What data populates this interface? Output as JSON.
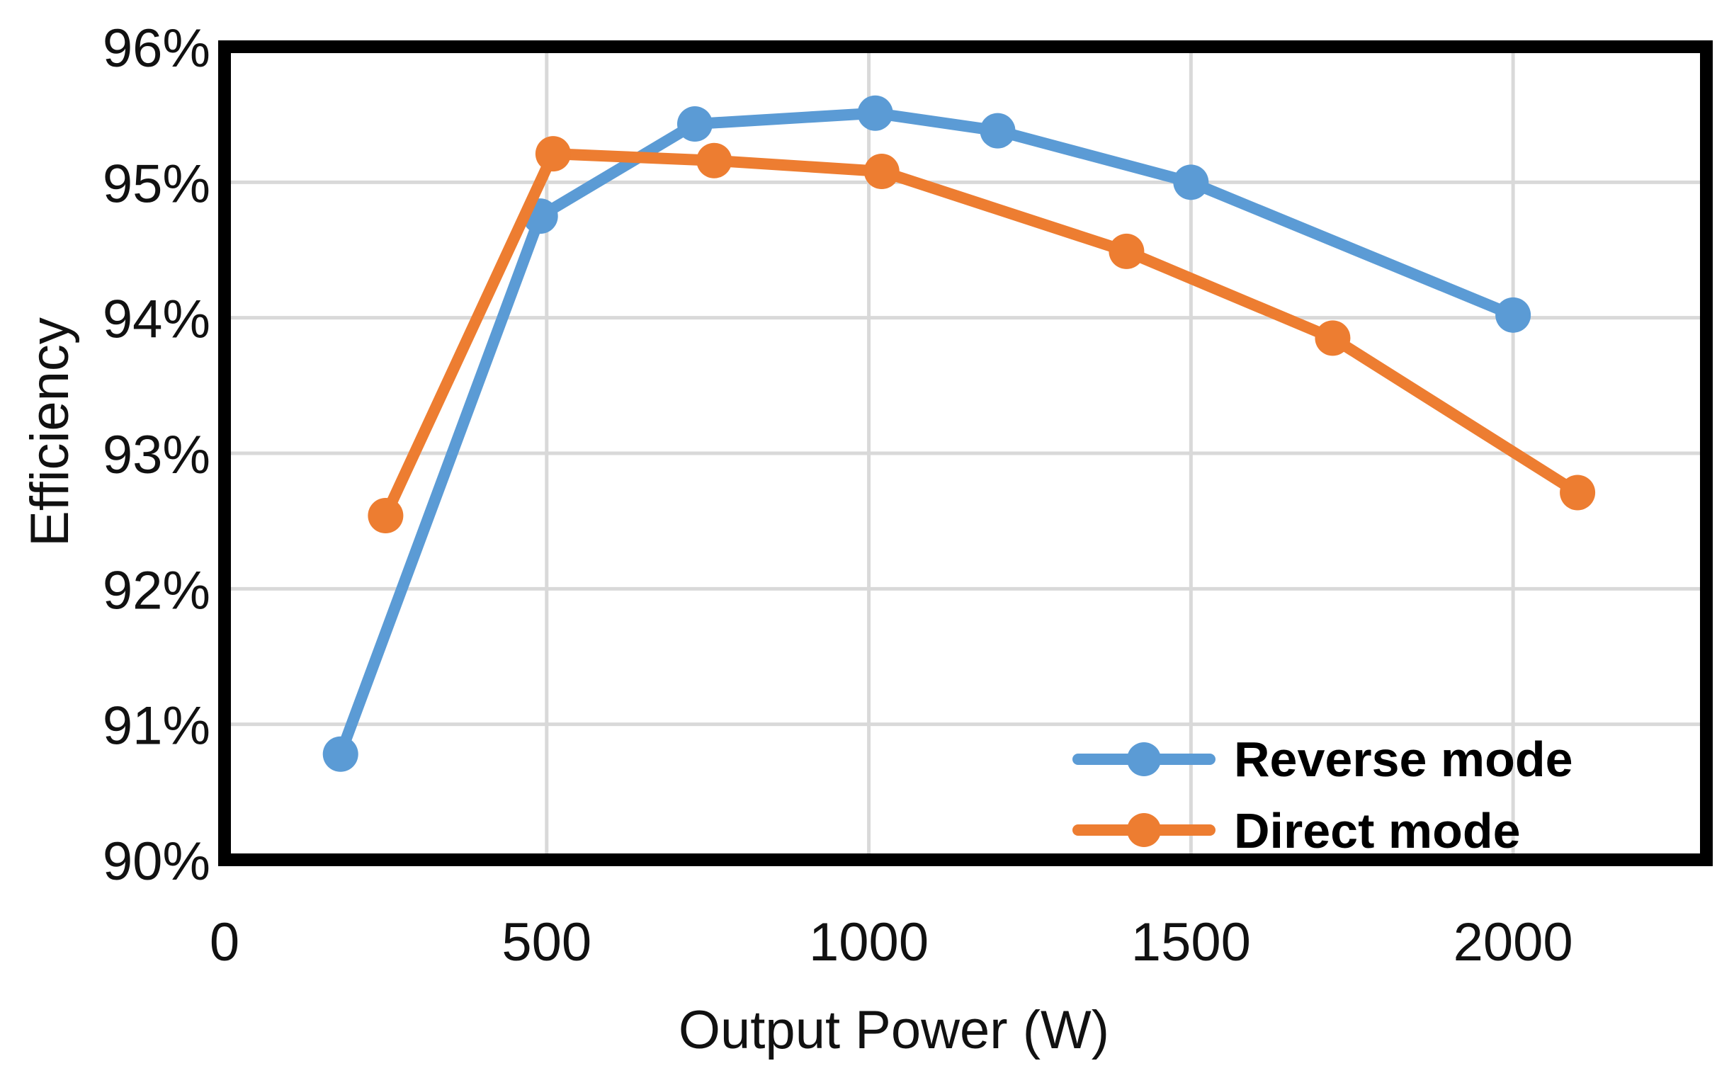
{
  "chart_data": {
    "type": "line",
    "title": "",
    "xlabel": "Output Power (W)",
    "ylabel": "Efficiency",
    "xlim": [
      0,
      2300
    ],
    "ylim": [
      90,
      96
    ],
    "x_ticks": [
      0,
      500,
      1000,
      1500,
      2000
    ],
    "x_tick_labels": [
      "0",
      "500",
      "1000",
      "1500",
      "2000"
    ],
    "y_ticks": [
      90,
      91,
      92,
      93,
      94,
      95,
      96
    ],
    "y_tick_labels": [
      "90%",
      "91%",
      "92%",
      "93%",
      "94%",
      "95%",
      "96%"
    ],
    "grid": true,
    "legend_position": "bottom-right",
    "series": [
      {
        "name": "Reverse mode",
        "color": "#5B9BD5",
        "points": [
          {
            "x": 180,
            "y": 90.78
          },
          {
            "x": 490,
            "y": 94.75
          },
          {
            "x": 730,
            "y": 95.43
          },
          {
            "x": 1010,
            "y": 95.51
          },
          {
            "x": 1200,
            "y": 95.38
          },
          {
            "x": 1500,
            "y": 95.0
          },
          {
            "x": 2000,
            "y": 94.02
          }
        ]
      },
      {
        "name": "Direct mode",
        "color": "#ED7D31",
        "points": [
          {
            "x": 250,
            "y": 92.54
          },
          {
            "x": 510,
            "y": 95.21
          },
          {
            "x": 760,
            "y": 95.16
          },
          {
            "x": 1020,
            "y": 95.08
          },
          {
            "x": 1400,
            "y": 94.49
          },
          {
            "x": 1720,
            "y": 93.85
          },
          {
            "x": 2100,
            "y": 92.71
          }
        ]
      }
    ]
  }
}
